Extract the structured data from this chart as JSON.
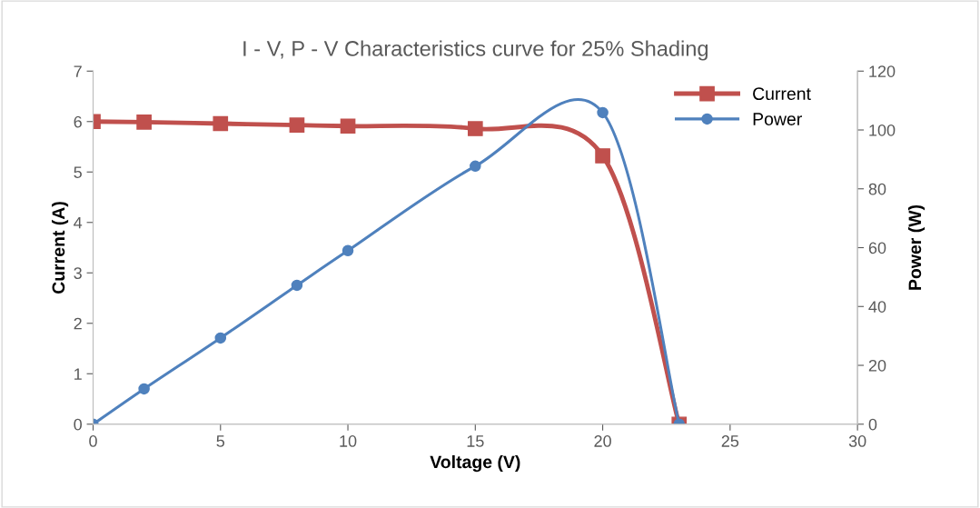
{
  "chart_data": {
    "type": "line",
    "title": "I - V, P - V Characteristics curve for 25% Shading",
    "xlabel": "Voltage (V)",
    "ylabel": "Current (A)",
    "y2label": "Power (W)",
    "x": [
      0,
      2,
      5,
      8,
      10,
      15,
      20,
      23
    ],
    "series": [
      {
        "name": "Current",
        "color": "#c0504d",
        "marker": "square",
        "values": [
          6.0,
          5.99,
          5.96,
          5.93,
          5.91,
          5.86,
          5.32,
          0
        ]
      },
      {
        "name": "Power",
        "color": "#4f81bd",
        "marker": "circle",
        "axis": "y2",
        "values": [
          0,
          12,
          29.3,
          47.2,
          59,
          87.7,
          105.9,
          0
        ]
      }
    ],
    "xlim": [
      0,
      30
    ],
    "xticks": [
      0,
      5,
      10,
      15,
      20,
      25,
      30
    ],
    "ylim": [
      0,
      7
    ],
    "yticks": [
      0,
      1,
      2,
      3,
      4,
      5,
      6,
      7
    ],
    "y2lim": [
      0,
      120
    ],
    "y2ticks": [
      0,
      20,
      40,
      60,
      80,
      100,
      120
    ],
    "grid": false,
    "legend": "top right",
    "line_style": "solid"
  }
}
